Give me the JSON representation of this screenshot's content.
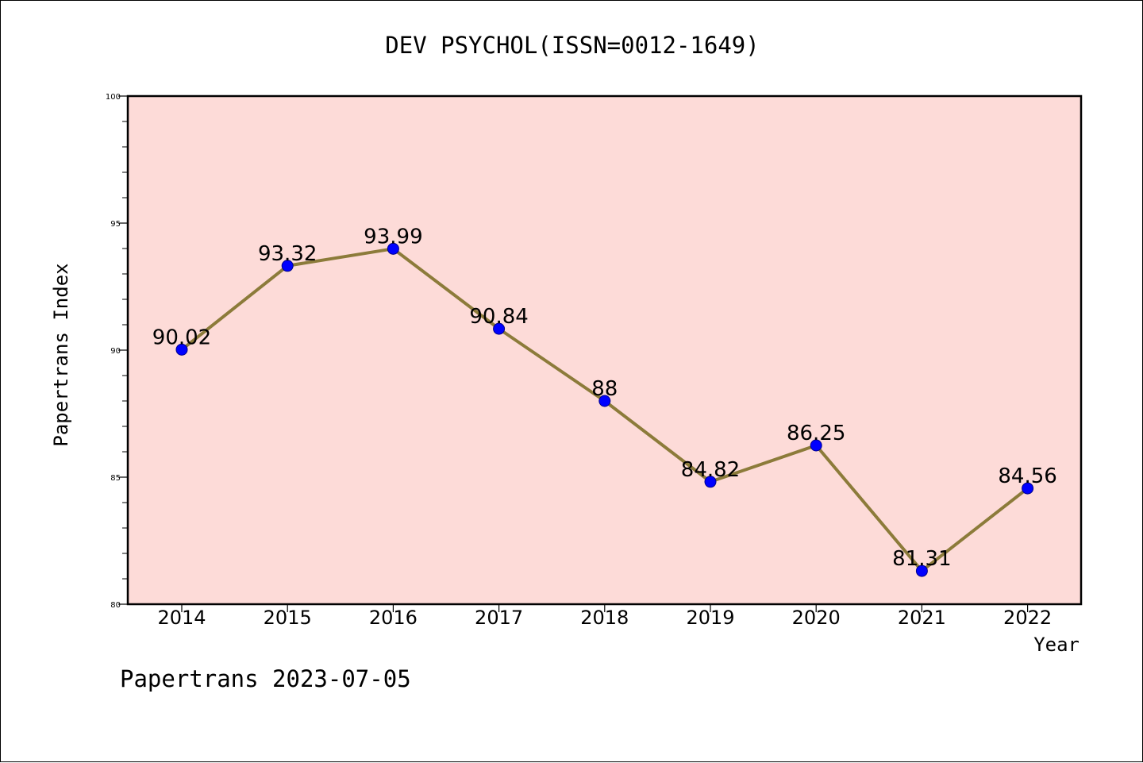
{
  "colors": {
    "plot_background": "#fddbd8",
    "line": "#8c7b3a",
    "marker_fill": "#0000ff",
    "marker_edge": "#00008b",
    "axis": "#000000"
  },
  "chart_data": {
    "type": "line",
    "title": "DEV PSYCHOL(ISSN=0012-1649)",
    "xlabel": "Year",
    "ylabel": "Papertrans Index",
    "footer": "Papertrans 2023-07-05",
    "x": [
      "2014",
      "2015",
      "2016",
      "2017",
      "2018",
      "2019",
      "2020",
      "2021",
      "2022"
    ],
    "values": [
      90.02,
      93.32,
      93.99,
      90.84,
      88,
      84.82,
      86.25,
      81.31,
      84.56
    ],
    "value_labels": [
      "90.02",
      "93.32",
      "93.99",
      "90.84",
      "88",
      "84.82",
      "86.25",
      "81.31",
      "84.56"
    ],
    "yticks": [
      80,
      85,
      90,
      95,
      100
    ],
    "ytick_labels": [
      "80",
      "85",
      "90",
      "95",
      "100"
    ],
    "ylim": [
      80,
      100
    ],
    "minor_tick_step": 1,
    "grid": false,
    "legend": "none"
  }
}
